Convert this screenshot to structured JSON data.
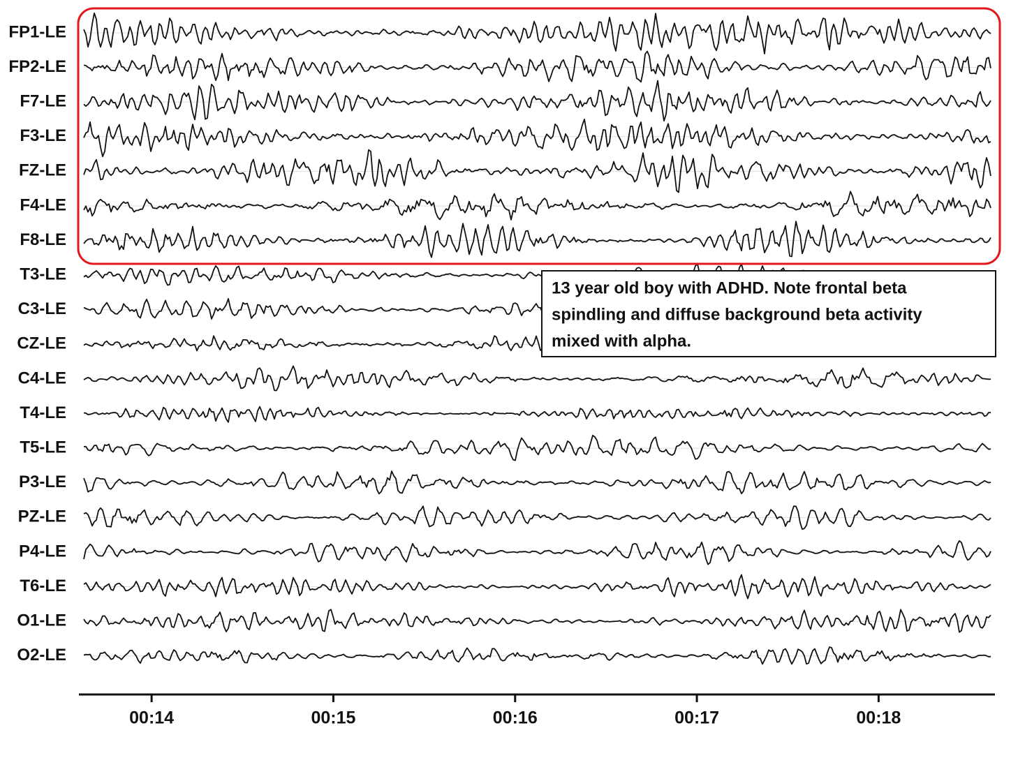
{
  "chart_data": {
    "type": "eeg",
    "channels": [
      "FP1-LE",
      "FP2-LE",
      "F7-LE",
      "F3-LE",
      "FZ-LE",
      "F4-LE",
      "F8-LE",
      "T3-LE",
      "C3-LE",
      "CZ-LE",
      "C4-LE",
      "T4-LE",
      "T5-LE",
      "P3-LE",
      "PZ-LE",
      "P4-LE",
      "T6-LE",
      "O1-LE",
      "O2-LE"
    ],
    "xlim": [
      13.6,
      18.64
    ],
    "xticks": [
      {
        "value": 14,
        "label": "00:14"
      },
      {
        "value": 15,
        "label": "00:15"
      },
      {
        "value": 16,
        "label": "00:16"
      },
      {
        "value": 17,
        "label": "00:17"
      },
      {
        "value": 18,
        "label": "00:18"
      }
    ],
    "annotation": [
      "13 year old boy with ADHD. Note frontal beta",
      "spindling and diffuse background beta activity",
      "mixed with alpha."
    ],
    "color": "#111111"
  }
}
